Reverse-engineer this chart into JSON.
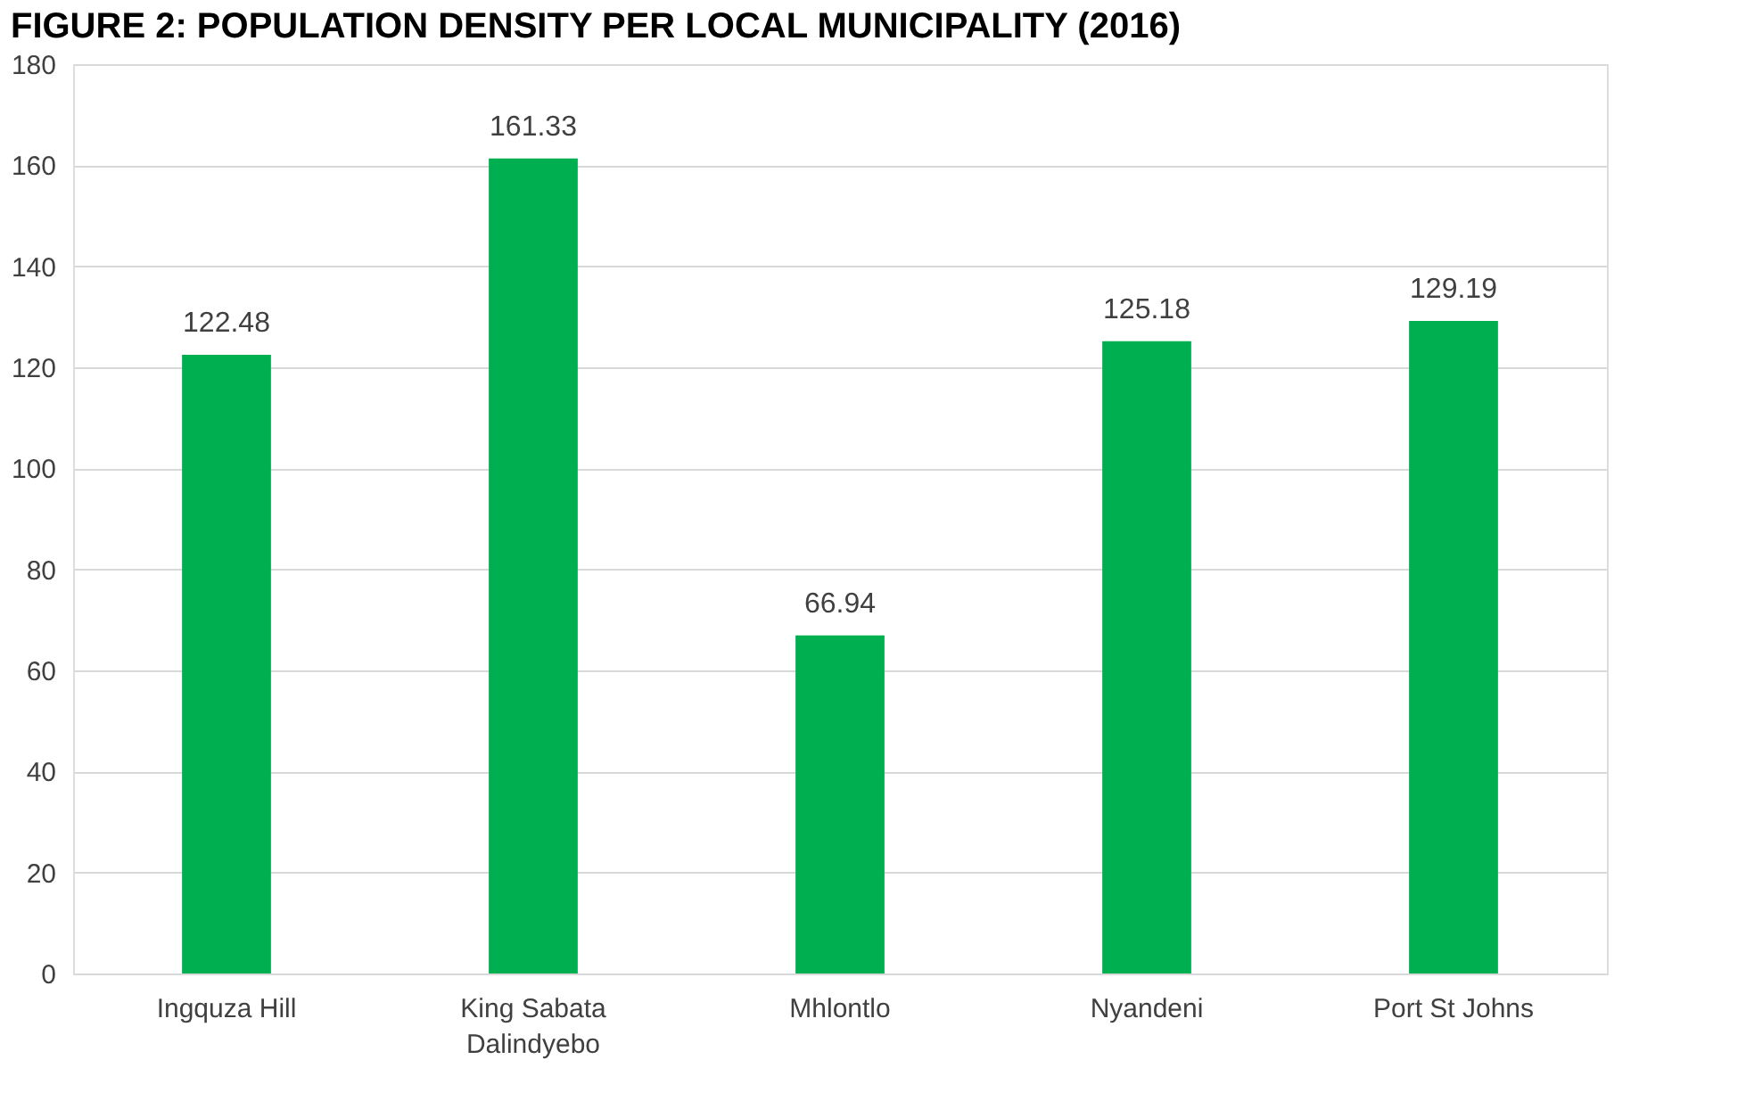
{
  "chart_data": {
    "type": "bar",
    "title": "FIGURE 2: POPULATION DENSITY PER LOCAL MUNICIPALITY (2016)",
    "categories": [
      "Ingquza Hill",
      "King Sabata Dalindyebo",
      "Mhlontlo",
      "Nyandeni",
      "Port St Johns"
    ],
    "values": [
      122.48,
      161.33,
      66.94,
      125.18,
      129.19
    ],
    "color": "#00b050",
    "ylim": [
      0,
      180
    ],
    "yticks": [
      0,
      20,
      40,
      60,
      80,
      100,
      120,
      140,
      160,
      180
    ],
    "grid": "y",
    "data_labels": true
  }
}
